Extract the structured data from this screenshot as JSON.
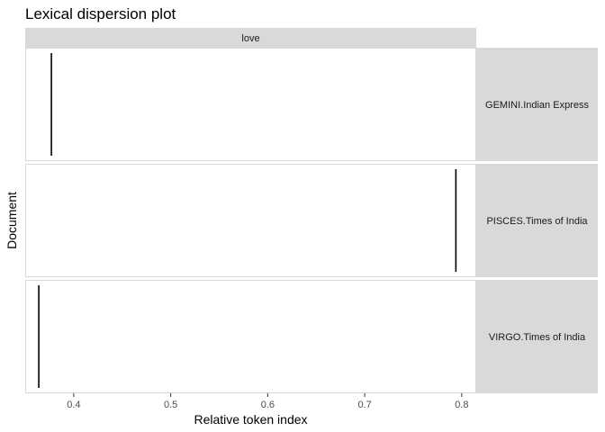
{
  "chart_data": {
    "type": "scatter",
    "title": "Lexical dispersion plot",
    "xlabel": "Relative token index",
    "ylabel": "Document",
    "facet_label": "love",
    "xlim": [
      0.35,
      0.815
    ],
    "x_ticks": [
      0.4,
      0.5,
      0.6,
      0.7,
      0.8
    ],
    "x_tick_labels": [
      "0.4",
      "0.5",
      "0.6",
      "0.7",
      "0.8"
    ],
    "grid": false,
    "documents": [
      {
        "name": "GEMINI.Indian Express",
        "x": [
          0.377
        ]
      },
      {
        "name": "PISCES.Times of India",
        "x": [
          0.794
        ]
      },
      {
        "name": "VIRGO.Times of India",
        "x": [
          0.364
        ]
      }
    ]
  }
}
